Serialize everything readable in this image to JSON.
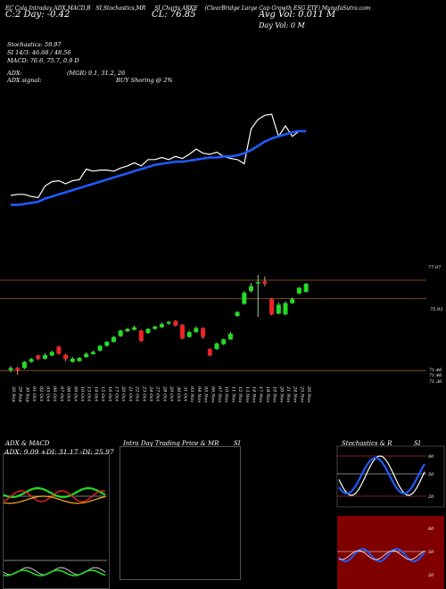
{
  "header": {
    "line1": [
      "EC Cola Intraday ADX,MACD,B",
      "SI,Stochastics,MR",
      "SI Charts ARKE",
      "(ClearBridge  Large  Cap Growth ESG ETF) MunafaSutra.com"
    ],
    "line2_left": "C:2  Day:  -0.42",
    "close_label": "CL: 76.85",
    "avg_vol": "Avg Vol: 0.011 M",
    "day_vol": "Day Vol: 0   M"
  },
  "indicators": {
    "stochastics": "Stochastics: 59.97",
    "si": "SI 14/3: 46.68 / 48.56",
    "macd": "MACD: 76.6, 75.7, 0.9 D",
    "adx": "ADX:",
    "adx_vals": "(MGR) 9.1, 31.2, 26",
    "adx_signal": "ADX  signal:",
    "buy_signal": "BUY Shoring @ 2%"
  },
  "price_labels": [
    "77.07",
    "75.93",
    "71.46",
    "71.46",
    "71.36"
  ],
  "dates": [
    "26 Sep",
    "29 Sep",
    "30 Sep",
    "01 Oct",
    "02 Oct",
    "03 Oct",
    "06 Oct",
    "07 Oct",
    "08 Oct",
    "09 Oct",
    "10 Oct",
    "13 Oct",
    "14 Oct",
    "15 Oct",
    "16 Oct",
    "17 Oct",
    "20 Oct",
    "21 Oct",
    "22 Oct",
    "23 Oct",
    "24 Oct",
    "27 Oct",
    "28 Oct",
    "29 Oct",
    "30 Oct",
    "31 Oct",
    "03 Nov",
    "04 Nov",
    "05 Nov",
    "06 Nov",
    "07 Nov",
    "10 Nov",
    "11 Nov",
    "12 Nov",
    "13 Nov",
    "14 Nov",
    "17 Nov",
    "18 Nov",
    "19 Nov",
    "20 Nov",
    "21 Nov",
    "24 Nov",
    "25 Nov",
    "26 Nov"
  ],
  "panels": {
    "adx_title": "ADX  & MACD",
    "adx_values": "ADX: 9.09  +DI: 31.17  -DI: 25.97",
    "intraday_title": "Intra  Day Trading Price  & MR",
    "intraday_si": "SI",
    "stoch_title": "Stochastics & R",
    "stoch_si": "SI",
    "stoch_ticks": [
      "80",
      "50",
      "20"
    ],
    "rsi_ticks": [
      "80",
      "50",
      "20"
    ]
  },
  "chart_data": {
    "type": "candlestick",
    "x": [
      "26 Sep",
      "29 Sep",
      "30 Sep",
      "01 Oct",
      "02 Oct",
      "03 Oct",
      "06 Oct",
      "07 Oct",
      "08 Oct",
      "09 Oct",
      "10 Oct",
      "13 Oct",
      "14 Oct",
      "15 Oct",
      "16 Oct",
      "17 Oct",
      "20 Oct",
      "21 Oct",
      "22 Oct",
      "23 Oct",
      "24 Oct",
      "27 Oct",
      "28 Oct",
      "29 Oct",
      "30 Oct",
      "31 Oct",
      "03 Nov",
      "04 Nov",
      "05 Nov",
      "06 Nov",
      "07 Nov",
      "10 Nov",
      "11 Nov",
      "12 Nov",
      "13 Nov",
      "14 Nov",
      "17 Nov",
      "18 Nov",
      "19 Nov",
      "20 Nov",
      "21 Nov",
      "24 Nov",
      "25 Nov",
      "26 Nov"
    ],
    "ylim": [
      71.2,
      78.4
    ],
    "candles": [
      {
        "o": 71.5,
        "c": 71.62,
        "h": 71.75,
        "l": 71.35
      },
      {
        "o": 71.62,
        "c": 71.48,
        "h": 71.7,
        "l": 71.2
      },
      {
        "o": 71.62,
        "c": 72.0,
        "h": 72.05,
        "l": 71.55
      },
      {
        "o": 72.0,
        "c": 72.18,
        "h": 72.25,
        "l": 71.95
      },
      {
        "o": 72.4,
        "c": 72.18,
        "h": 72.45,
        "l": 72.1
      },
      {
        "o": 72.2,
        "c": 72.42,
        "h": 72.55,
        "l": 72.15
      },
      {
        "o": 72.4,
        "c": 72.62,
        "h": 72.7,
        "l": 72.35
      },
      {
        "o": 72.95,
        "c": 72.5,
        "h": 73.0,
        "l": 72.45
      },
      {
        "o": 72.45,
        "c": 72.18,
        "h": 72.5,
        "l": 72.05
      },
      {
        "o": 72.0,
        "c": 72.2,
        "h": 72.3,
        "l": 71.95
      },
      {
        "o": 72.05,
        "c": 72.25,
        "h": 72.3,
        "l": 72.0
      },
      {
        "o": 72.3,
        "c": 72.5,
        "h": 72.6,
        "l": 72.25
      },
      {
        "o": 72.48,
        "c": 72.62,
        "h": 72.7,
        "l": 72.45
      },
      {
        "o": 72.7,
        "c": 73.0,
        "h": 73.05,
        "l": 72.65
      },
      {
        "o": 73.0,
        "c": 73.25,
        "h": 73.3,
        "l": 72.95
      },
      {
        "o": 73.25,
        "c": 73.55,
        "h": 73.6,
        "l": 73.2
      },
      {
        "o": 73.6,
        "c": 73.95,
        "h": 74.0,
        "l": 73.55
      },
      {
        "o": 73.9,
        "c": 74.05,
        "h": 74.1,
        "l": 73.85
      },
      {
        "o": 74.0,
        "c": 74.15,
        "h": 74.25,
        "l": 73.95
      },
      {
        "o": 73.95,
        "c": 73.3,
        "h": 74.0,
        "l": 73.25
      },
      {
        "o": 73.8,
        "c": 74.05,
        "h": 74.1,
        "l": 73.75
      },
      {
        "o": 74.05,
        "c": 74.2,
        "h": 74.25,
        "l": 74.0
      },
      {
        "o": 74.15,
        "c": 74.35,
        "h": 74.45,
        "l": 74.1
      },
      {
        "o": 74.38,
        "c": 74.48,
        "h": 74.55,
        "l": 74.3
      },
      {
        "o": 74.55,
        "c": 74.25,
        "h": 74.6,
        "l": 74.2
      },
      {
        "o": 74.3,
        "c": 73.45,
        "h": 74.35,
        "l": 73.4
      },
      {
        "o": 73.55,
        "c": 73.85,
        "h": 73.95,
        "l": 73.5
      },
      {
        "o": 73.85,
        "c": 74.1,
        "h": 74.2,
        "l": 73.8
      },
      {
        "o": 74.1,
        "c": 73.55,
        "h": 74.15,
        "l": 73.45
      },
      {
        "o": 72.8,
        "c": 72.4,
        "h": 72.85,
        "l": 72.35
      },
      {
        "o": 72.8,
        "c": 73.15,
        "h": 73.2,
        "l": 72.75
      },
      {
        "o": 73.1,
        "c": 73.4,
        "h": 73.45,
        "l": 73.05
      },
      {
        "o": 73.4,
        "c": 73.75,
        "h": 73.85,
        "l": 73.35
      },
      {
        "o": 74.85,
        "c": 75.1,
        "h": 75.15,
        "l": 74.8
      },
      {
        "o": 75.6,
        "c": 76.3,
        "h": 76.4,
        "l": 75.55
      },
      {
        "o": 76.4,
        "c": 76.7,
        "h": 76.9,
        "l": 76.3
      },
      {
        "o": 76.95,
        "c": 76.95,
        "h": 77.4,
        "l": 74.8
      },
      {
        "o": 77.0,
        "c": 76.85,
        "h": 77.3,
        "l": 76.7
      },
      {
        "o": 75.9,
        "c": 74.95,
        "h": 75.95,
        "l": 74.9
      },
      {
        "o": 75.0,
        "c": 75.55,
        "h": 75.7,
        "l": 74.95
      },
      {
        "o": 74.95,
        "c": 75.65,
        "h": 75.75,
        "l": 74.9
      },
      {
        "o": 75.65,
        "c": 75.9,
        "h": 76.0,
        "l": 75.6
      },
      {
        "o": 76.25,
        "c": 76.6,
        "h": 76.65,
        "l": 76.2
      },
      {
        "o": 76.35,
        "c": 76.85,
        "h": 76.9,
        "l": 76.3
      }
    ],
    "ma_white": [
      77.2,
      77.3,
      77.3,
      77.1,
      77.0,
      78.1,
      78.5,
      78.6,
      78.3,
      78.6,
      78.7,
      79.7,
      79.5,
      79.6,
      79.6,
      79.5,
      79.8,
      80.0,
      80.3,
      80.0,
      80.6,
      80.6,
      80.8,
      80.6,
      80.9,
      80.7,
      81.1,
      81.6,
      81.2,
      81.1,
      81.3,
      80.9,
      80.7,
      80.6,
      80.2,
      83.5,
      84.4,
      84.8,
      84.9,
      82.8,
      83.8,
      82.8,
      83.3,
      83.3
    ],
    "ma_blue": [
      76.3,
      76.3,
      76.4,
      76.5,
      76.6,
      76.9,
      77.1,
      77.3,
      77.5,
      77.7,
      77.9,
      78.1,
      78.3,
      78.5,
      78.7,
      78.9,
      79.1,
      79.3,
      79.5,
      79.7,
      79.9,
      80.1,
      80.2,
      80.3,
      80.4,
      80.4,
      80.5,
      80.6,
      80.7,
      80.8,
      80.8,
      80.9,
      80.9,
      81.0,
      81.2,
      81.5,
      81.9,
      82.3,
      82.6,
      82.8,
      83.0,
      83.2,
      83.3,
      83.3
    ],
    "hlines": [
      77.07,
      75.93,
      71.46
    ]
  }
}
